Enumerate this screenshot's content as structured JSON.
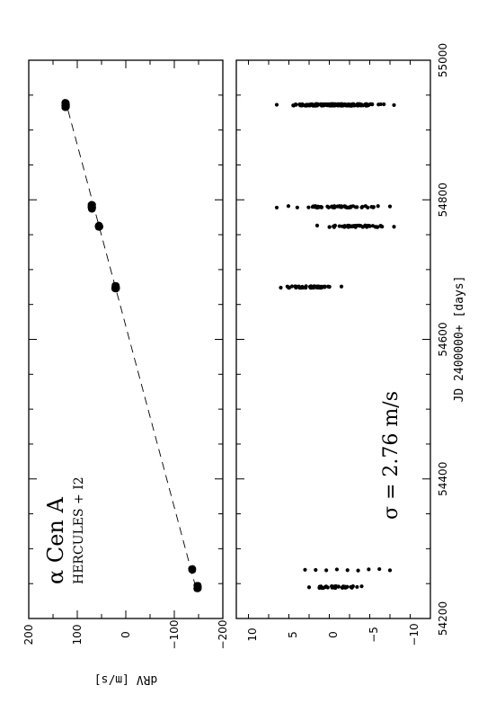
{
  "chart_data": [
    {
      "type": "scatter",
      "panel": "upper",
      "annotation_star": "α Cen A",
      "annotation_instrument": "HERCULES + I2",
      "xlabel": "JD 2400000+ [days]",
      "ylabel": "dRV [m/s]",
      "xlim": [
        54200,
        55000
      ],
      "ylim": [
        -200,
        200
      ],
      "x_tick_labels": [
        "54200",
        "54400",
        "54600",
        "54800",
        "55000"
      ],
      "x_ticks": [
        54200,
        54400,
        54600,
        54800,
        55000
      ],
      "y_tick_labels": [
        "200",
        "100",
        "0",
        "−100",
        "−200"
      ],
      "y_ticks": [
        200,
        100,
        0,
        -100,
        -200
      ],
      "trend_line": {
        "x": [
          54245,
          54936
        ],
        "y": [
          -144,
          122
        ]
      },
      "clusters": [
        {
          "x": 54245,
          "y": -148,
          "x_spread": 3,
          "y_spread": 2,
          "count": 30
        },
        {
          "x": 54270,
          "y": -137,
          "x_spread": 2,
          "y_spread": 2,
          "count": 8
        },
        {
          "x": 54675,
          "y": 21,
          "x_spread": 3,
          "y_spread": 2,
          "count": 40
        },
        {
          "x": 54762,
          "y": 55,
          "x_spread": 2,
          "y_spread": 2,
          "count": 25
        },
        {
          "x": 54790,
          "y": 70,
          "x_spread": 4,
          "y_spread": 2,
          "count": 40
        },
        {
          "x": 54936,
          "y": 124,
          "x_spread": 4,
          "y_spread": 2,
          "count": 80
        }
      ]
    },
    {
      "type": "scatter",
      "panel": "lower",
      "annotation_sigma": "σ  =  2.76  m/s",
      "xlabel": "JD 2400000+ [days]",
      "ylabel": "dRV [m/s]",
      "xlim": [
        54200,
        55000
      ],
      "ylim": [
        -12,
        12
      ],
      "x_tick_labels": [
        "54200",
        "54400",
        "54600",
        "54800",
        "55000"
      ],
      "x_ticks": [
        54200,
        54400,
        54600,
        54800,
        55000
      ],
      "y_tick_labels": [
        "10",
        "5",
        "0",
        "−5",
        "−10"
      ],
      "y_ticks": [
        10,
        5,
        0,
        -5,
        -10
      ],
      "clusters": [
        {
          "x": 54245,
          "y_min": -3.5,
          "y_max": 3.0,
          "count": 40,
          "sparse": false
        },
        {
          "x": 54270,
          "y_min": -7.0,
          "y_max": 3.5,
          "count": 9,
          "sparse": true
        },
        {
          "x": 54675,
          "y_min": -1.0,
          "y_max": 6.5,
          "count": 60,
          "sparse": false
        },
        {
          "x": 54762,
          "y_min": -7.5,
          "y_max": 2.0,
          "count": 50,
          "sparse": false
        },
        {
          "x": 54790,
          "y_min": -7.0,
          "y_max": 7.0,
          "count": 55,
          "sparse": false
        },
        {
          "x": 54936,
          "y_min": -7.5,
          "y_max": 7.0,
          "count": 200,
          "sparse": false
        }
      ]
    }
  ]
}
